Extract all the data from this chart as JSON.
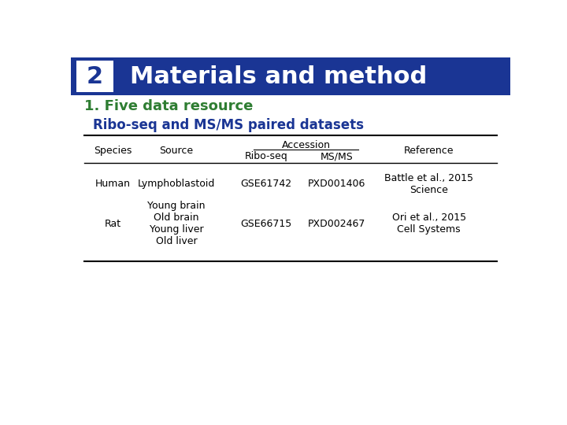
{
  "header_bg_color": "#1a3594",
  "header_number": "2",
  "header_title": "Materials and method",
  "header_text_color": "#ffffff",
  "section_title": "1. Five data resource",
  "section_title_color": "#2e7d32",
  "subtitle": "Ribo-seq and MS/MS paired datasets",
  "subtitle_color": "#1a3594",
  "bg_color": "#ffffff",
  "table": {
    "col_headers": [
      "Species",
      "Source",
      "Ribo-seq",
      "MS/MS",
      "Reference"
    ],
    "accession_label": "Accession",
    "rows": [
      {
        "species": "Human",
        "source": "Lymphoblastoid",
        "riboseq": "GSE61742",
        "msms": "PXD001406",
        "reference": "Battle et al., 2015\nScience"
      },
      {
        "species": "Rat",
        "source": "Young brain\nOld brain\nYoung liver\nOld liver",
        "riboseq": "GSE66715",
        "msms": "PXD002467",
        "reference": "Ori et al., 2015\nCell Systems"
      }
    ]
  }
}
